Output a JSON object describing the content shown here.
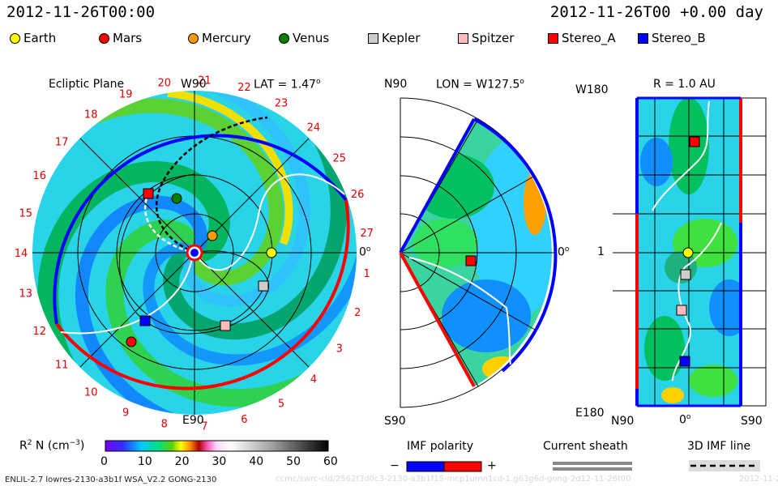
{
  "header": {
    "date_left": "2012-11-26T00:00",
    "date_right": "2012-11-26T00 +0.00 day"
  },
  "legend": [
    {
      "name": "Earth",
      "shape": "circle",
      "color": "#ffff00"
    },
    {
      "name": "Mars",
      "shape": "circle",
      "color": "#ff0000"
    },
    {
      "name": "Mercury",
      "shape": "circle",
      "color": "#ff9900"
    },
    {
      "name": "Venus",
      "shape": "circle",
      "color": "#008000"
    },
    {
      "name": "Kepler",
      "shape": "square",
      "color": "#cccccc"
    },
    {
      "name": "Spitzer",
      "shape": "square",
      "color": "#ffbbbb"
    },
    {
      "name": "Stereo_A",
      "shape": "square",
      "color": "#ff0000"
    },
    {
      "name": "Stereo_B",
      "shape": "square",
      "color": "#0000ff"
    }
  ],
  "panels": {
    "ecliptic": {
      "title": "Ecliptic Plane",
      "top_label": "W90",
      "bottom_label": "E90",
      "right_label": "0",
      "lat_label": "LAT = 1.47",
      "degree_sign": "o",
      "carrington_numbers": [
        "1",
        "2",
        "3",
        "4",
        "5",
        "6",
        "7",
        "8",
        "9",
        "10",
        "11",
        "12",
        "13",
        "14",
        "15",
        "16",
        "17",
        "18",
        "19",
        "20",
        "21",
        "22",
        "23",
        "24",
        "25",
        "26",
        "27"
      ]
    },
    "meridional": {
      "top_label": "N90",
      "bottom_label": "S90",
      "right_label": "0",
      "lon_label": "LON = W127.5",
      "degree_sign": "o"
    },
    "radial": {
      "title": "R = 1.0 AU",
      "top_left": "W180",
      "mid_left": "1",
      "bottom_left": "E180",
      "bottom_n": "N90",
      "bottom_zero": "0",
      "bottom_s": "S90",
      "degree_sign": "o"
    }
  },
  "colorbar": {
    "label_prefix": "R",
    "label_sup": "2",
    "label_rest": " N (cm",
    "label_exp": "−3",
    "label_close": ")",
    "ticks": [
      "0",
      "10",
      "20",
      "30",
      "40",
      "50",
      "60"
    ]
  },
  "imf": {
    "title": "IMF polarity",
    "minus": "−",
    "plus": "+",
    "current_sheath": "Current sheath",
    "imf_line": "3D IMF line"
  },
  "footer": {
    "model": "ENLIL-2.7 lowres-2130-a3b1f WSA_V2.2 GONG-2130",
    "faint_path": "ccmc/swrc-cld/2562f3d0c3-2130-a3b1f15-mcp1umn1cd-1.g63g6d-gong-2d12-11-26t00",
    "faint_date": "2012-11-27"
  },
  "chart_data": [
    {
      "type": "heatmap",
      "title": "Ecliptic Plane",
      "quantity": "R^2 N (cm^-3)",
      "range": [
        0,
        60
      ],
      "bodies": [
        {
          "name": "Earth"
        },
        {
          "name": "Mercury"
        },
        {
          "name": "Venus"
        },
        {
          "name": "Mars"
        },
        {
          "name": "Stereo_A"
        },
        {
          "name": "Stereo_B"
        },
        {
          "name": "Kepler"
        },
        {
          "name": "Spitzer"
        }
      ],
      "carrington_ticks": [
        1,
        2,
        3,
        4,
        5,
        6,
        7,
        8,
        9,
        10,
        11,
        12,
        13,
        14,
        15,
        16,
        17,
        18,
        19,
        20,
        21,
        22,
        23,
        24,
        25,
        26,
        27
      ]
    },
    {
      "type": "heatmap",
      "title": "LON = W127.5",
      "quantity": "R^2 N (cm^-3)",
      "range": [
        0,
        60
      ],
      "bodies": [
        {
          "name": "Stereo_A"
        }
      ]
    },
    {
      "type": "heatmap",
      "title": "R = 1.0 AU",
      "quantity": "R^2 N (cm^-3)",
      "range": [
        0,
        60
      ],
      "bodies": [
        {
          "name": "Stereo_A"
        },
        {
          "name": "Earth"
        },
        {
          "name": "Kepler"
        },
        {
          "name": "Spitzer"
        },
        {
          "name": "Stereo_B"
        }
      ]
    }
  ]
}
